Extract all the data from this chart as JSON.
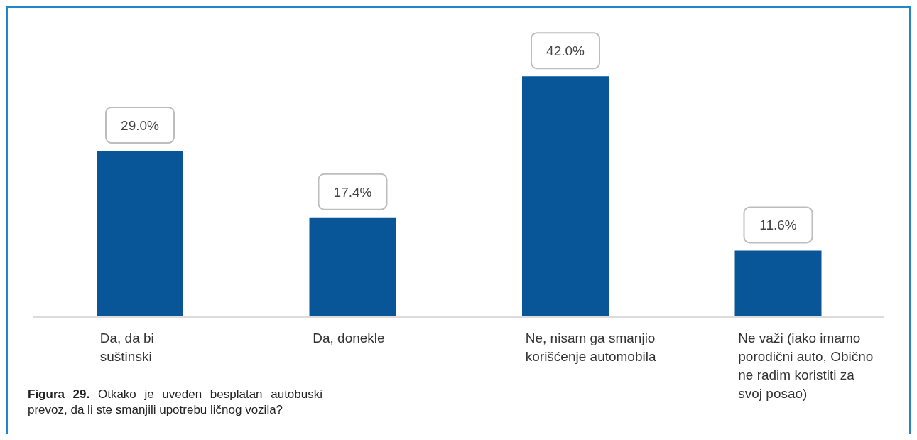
{
  "chart_data": {
    "type": "bar",
    "categories": [
      "Da, da bi suštinski",
      "Da, donekle",
      "Ne, nisam ga smanjio korišćenje automobila",
      "Ne važi (iako imamo porodični auto, Obično ne radim koristiti za svoj posao)"
    ],
    "values": [
      29.0,
      17.4,
      42.0,
      11.6
    ],
    "color": "#085597",
    "value_labels": [
      "29.0%",
      "17.4%",
      "42.0%",
      "11.6%"
    ],
    "annotations": [
      "Figura 29. Otkako je uveden besplatan autobuski prevoz, da li ste smanjili upotrebu ličnog vozila?"
    ]
  }
}
